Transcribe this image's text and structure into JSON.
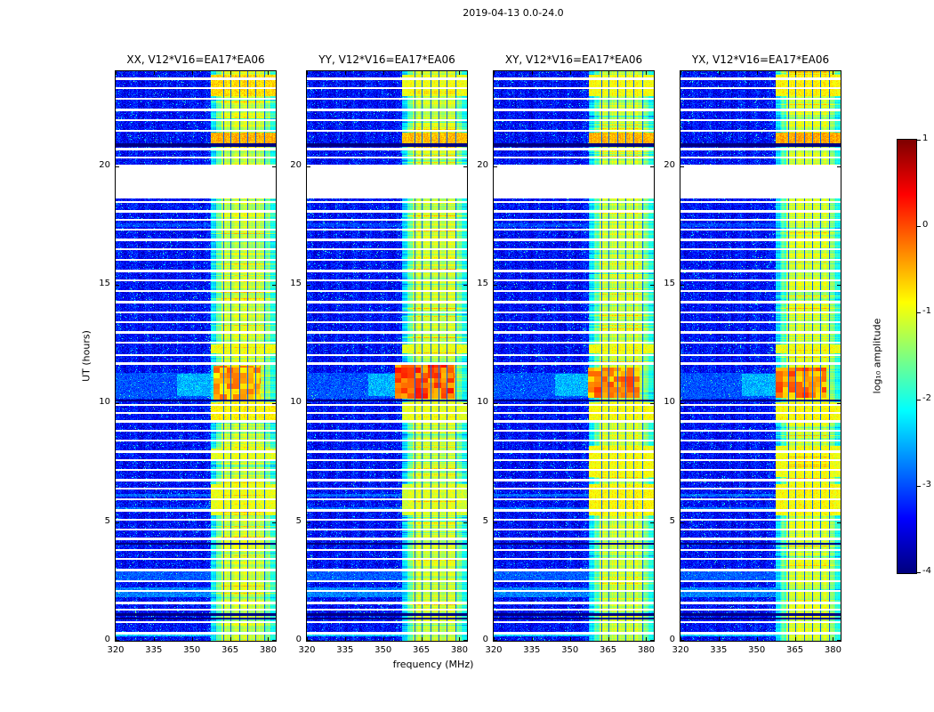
{
  "figure": {
    "title": "2019-04-13 0.0-24.0"
  },
  "chart_data": {
    "type": "heatmap",
    "title": "2019-04-13 0.0-24.0",
    "x": {
      "label": "frequency (MHz)",
      "min": 320,
      "max": 383,
      "ticks": [
        320,
        335,
        350,
        365,
        380
      ]
    },
    "y": {
      "label": "UT (hours)",
      "min": 0,
      "max": 24,
      "ticks": [
        0,
        5,
        10,
        15,
        20
      ]
    },
    "color": {
      "label": "log₁₀ amplitude",
      "min": -4,
      "max": 1,
      "ticks": [
        1,
        0,
        -1,
        -2,
        -3,
        -4
      ],
      "colormap": "jet"
    },
    "panels": [
      {
        "title": "XX, V12*V16=EA17*EA06",
        "seed": 101,
        "blob": {
          "h": [
            10.18,
            11.6
          ],
          "f": [
            358.5,
            377
          ],
          "level": -0.5
        },
        "hot_rows": [
          [
            5.3,
            6.6,
            -1.0
          ],
          [
            7.6,
            8.1,
            -1.05
          ],
          [
            9.3,
            10.05,
            -0.85
          ],
          [
            12.1,
            12.5,
            -0.95
          ],
          [
            20.95,
            21.4,
            -0.5
          ],
          [
            22.95,
            23.85,
            -0.7
          ]
        ]
      },
      {
        "title": "YY, V12*V16=EA17*EA06",
        "seed": 202,
        "blob": {
          "h": [
            10.2,
            11.65
          ],
          "f": [
            354.5,
            378
          ],
          "level": -0.12
        },
        "hot_rows": [
          [
            5.3,
            6.6,
            -1.1
          ],
          [
            9.3,
            10.05,
            -1.0
          ],
          [
            12.1,
            12.5,
            -1.0
          ],
          [
            20.95,
            21.4,
            -0.55
          ],
          [
            22.95,
            23.85,
            -0.95
          ]
        ]
      },
      {
        "title": "XY, V12*V16=EA17*EA06",
        "seed": 303,
        "blob": {
          "h": [
            10.25,
            11.5
          ],
          "f": [
            357,
            377.5
          ],
          "level": -0.32
        },
        "hot_rows": [
          [
            5.3,
            6.6,
            -0.85
          ],
          [
            6.9,
            8.2,
            -0.9
          ],
          [
            9.3,
            10.05,
            -0.9
          ],
          [
            12.1,
            12.5,
            -0.95
          ],
          [
            20.95,
            21.4,
            -0.5
          ],
          [
            22.95,
            23.85,
            -0.9
          ]
        ]
      },
      {
        "title": "YX, V12*V16=EA17*EA06",
        "seed": 404,
        "blob": {
          "h": [
            10.25,
            11.5
          ],
          "f": [
            357.5,
            377.5
          ],
          "level": -0.3
        },
        "hot_rows": [
          [
            5.3,
            6.6,
            -0.9
          ],
          [
            6.9,
            8.2,
            -0.95
          ],
          [
            9.3,
            10.05,
            -0.9
          ],
          [
            12.1,
            12.5,
            -0.95
          ],
          [
            20.95,
            21.4,
            -0.45
          ],
          [
            22.95,
            23.85,
            -0.85
          ]
        ]
      }
    ],
    "features": {
      "background_level": -3.35,
      "band": {
        "f_start": 357.5,
        "f_end": 383,
        "typical_level": -1.2
      },
      "data_gap_hours": [
        18.62,
        20.07
      ],
      "band_dark_lines": [
        362.2,
        365.3,
        368.6,
        371.8,
        375.1,
        378.3
      ],
      "white_lines": [
        0.35,
        0.8,
        1.3,
        1.62,
        2.1,
        2.5,
        3.0,
        3.45,
        3.82,
        4.3,
        4.68,
        5.1,
        5.52,
        5.95,
        6.4,
        6.78,
        7.2,
        7.6,
        8.0,
        8.45,
        8.85,
        9.25,
        9.6,
        9.95,
        11.7,
        12.05,
        12.55,
        13.0,
        13.42,
        13.85,
        14.3,
        14.72,
        15.2,
        15.6,
        16.05,
        16.5,
        16.9,
        17.32,
        17.75,
        18.12,
        18.5,
        20.35,
        20.72,
        21.5,
        21.95,
        22.4,
        22.85,
        23.3,
        23.7
      ],
      "black_lines": [
        [
          0.95,
          2
        ],
        [
          1.14,
          3
        ],
        [
          4.08,
          2
        ],
        [
          10.12,
          2
        ],
        [
          20.88,
          4
        ]
      ],
      "stripes": [
        {
          "h": [
            0.18,
            0.32
          ],
          "f": [
            320,
            383
          ],
          "level": -2.4
        },
        {
          "h": [
            1.85,
            2.25
          ],
          "f": [
            320,
            383
          ],
          "level": -2.75
        },
        {
          "h": [
            2.55,
            2.95
          ],
          "f": [
            320,
            383
          ],
          "level": -2.95
        },
        {
          "h": [
            5.45,
            5.62
          ],
          "f": [
            320,
            383
          ],
          "level": -2.85
        },
        {
          "h": [
            6.08,
            6.2
          ],
          "f": [
            320,
            383
          ],
          "level": -2.85
        },
        {
          "h": [
            10.2,
            11.3
          ],
          "f": [
            320,
            383
          ],
          "level": -3.0
        },
        {
          "h": [
            10.3,
            11.25
          ],
          "f": [
            344,
            357.5
          ],
          "level": -2.5
        },
        {
          "h": [
            17.42,
            17.58
          ],
          "f": [
            320,
            383
          ],
          "level": -3.05
        }
      ]
    }
  }
}
